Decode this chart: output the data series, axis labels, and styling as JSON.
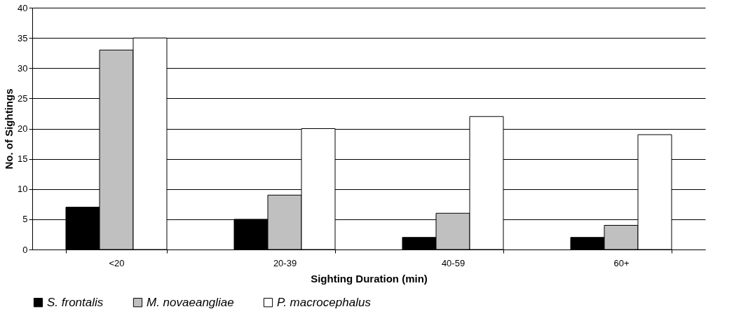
{
  "chart_data": {
    "type": "bar",
    "xlabel": "Sighting Duration (min)",
    "ylabel": "No. of Sightings",
    "categories": [
      "<20",
      "20-39",
      "40-59",
      "60+"
    ],
    "series": [
      {
        "name": "S. frontalis",
        "color": "#000000",
        "values": [
          7,
          5,
          2,
          2
        ]
      },
      {
        "name": "M. novaeangliae",
        "color": "#c0c0c0",
        "values": [
          33,
          9,
          6,
          4
        ]
      },
      {
        "name": "P. macrocephalus",
        "color": "#ffffff",
        "values": [
          35,
          20,
          22,
          19
        ]
      }
    ],
    "ylim": [
      0,
      40
    ],
    "yticks": [
      0,
      5,
      10,
      15,
      20,
      25,
      30,
      35,
      40
    ],
    "grid": "y",
    "legend": "bottom"
  }
}
